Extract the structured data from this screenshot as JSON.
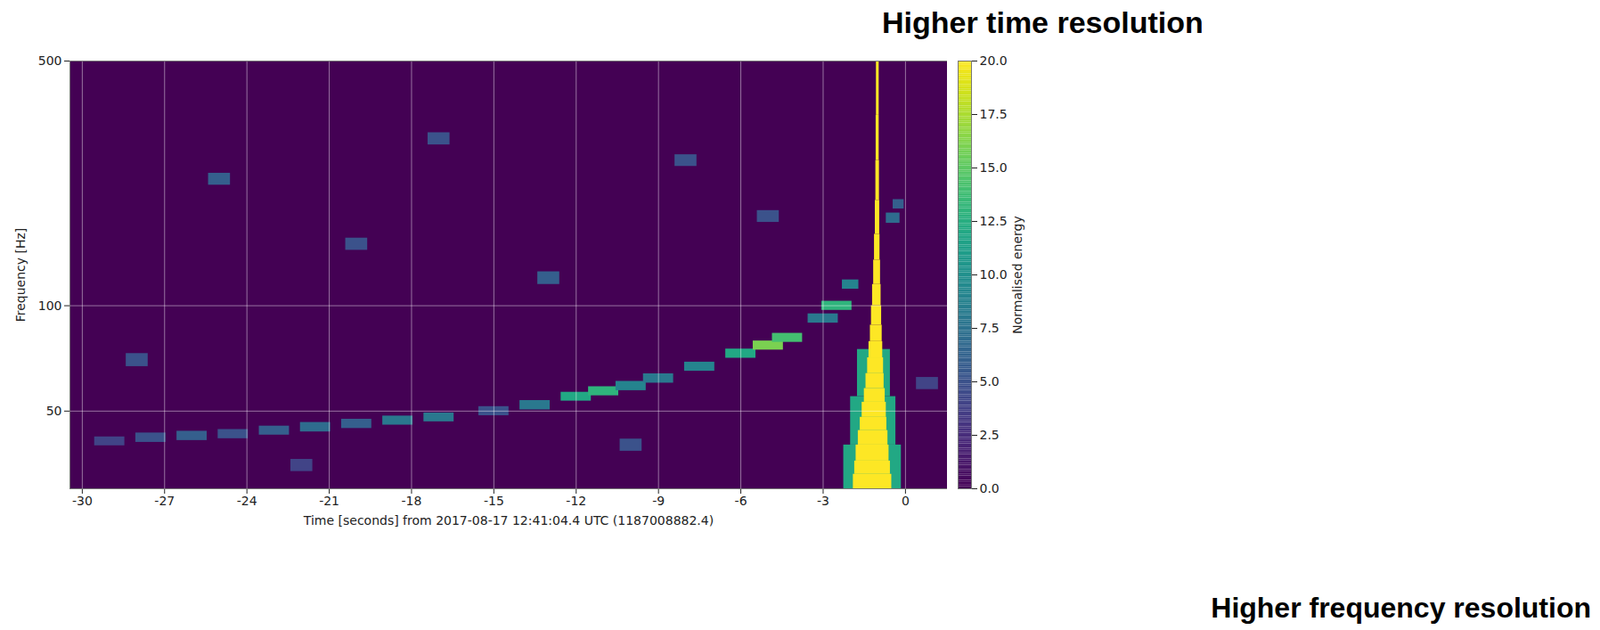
{
  "chart_data": {
    "type": "heatmap",
    "x_label": "Time [seconds] from 2017-08-17 12:41:04.4 UTC (1187008882.4)",
    "y_label": "Frequency [Hz]",
    "xlim": [
      -30.45,
      1.53
    ],
    "ylim": [
      30,
      500
    ],
    "xticks": [
      -30,
      -27,
      -24,
      -21,
      -18,
      -15,
      -12,
      -9,
      -6,
      -3,
      0
    ],
    "yticks": [
      50,
      100,
      500
    ],
    "log": "y",
    "grid": true,
    "color": "viridis",
    "colorbar": {
      "label": "Normalised energy",
      "lim": [
        0,
        20
      ],
      "ticks": [
        {
          "value": 0,
          "label": "0.0"
        },
        {
          "value": 2.5,
          "label": "2.5"
        },
        {
          "value": 5,
          "label": "5.0"
        },
        {
          "value": 7.5,
          "label": "7.5"
        },
        {
          "value": 10,
          "label": "10.0"
        },
        {
          "value": 12.5,
          "label": "12.5"
        },
        {
          "value": 15,
          "label": "15.0"
        },
        {
          "value": 17.5,
          "label": "17.5"
        },
        {
          "value": 20,
          "label": "20.0"
        }
      ]
    },
    "annotations": [
      "Higher time resolution",
      "Higher frequency resolution"
    ],
    "cells": [
      {
        "t": [
          -25.4,
          -24.6
        ],
        "f": [
          221,
          239
        ],
        "energy": 6
      },
      {
        "t": [
          -20.4,
          -19.6
        ],
        "f": [
          144,
          156
        ],
        "energy": 5
      },
      {
        "t": [
          -17.4,
          -16.6
        ],
        "f": [
          288,
          312
        ],
        "energy": 5
      },
      {
        "t": [
          -13.4,
          -12.6
        ],
        "f": [
          115,
          125
        ],
        "energy": 6
      },
      {
        "t": [
          -8.4,
          -7.6
        ],
        "f": [
          250,
          270
        ],
        "energy": 5
      },
      {
        "t": [
          -28.4,
          -27.6
        ],
        "f": [
          67,
          73
        ],
        "energy": 5
      },
      {
        "t": [
          -22.4,
          -21.6
        ],
        "f": [
          33.6,
          36.4
        ],
        "energy": 4
      },
      {
        "t": [
          -10.4,
          -9.6
        ],
        "f": [
          38.4,
          41.6
        ],
        "energy": 5
      },
      {
        "t": [
          -5.4,
          -4.6
        ],
        "f": [
          173,
          187
        ],
        "energy": 5
      },
      {
        "t": [
          0.4,
          1.2
        ],
        "f": [
          57.6,
          62.4
        ],
        "energy": 4
      },
      {
        "t": [
          -29.55,
          -28.45
        ],
        "f": [
          39.8,
          42.2
        ],
        "energy": 4
      },
      {
        "t": [
          -28.05,
          -26.95
        ],
        "f": [
          40.7,
          43.3
        ],
        "energy": 5
      },
      {
        "t": [
          -26.55,
          -25.45
        ],
        "f": [
          41.2,
          43.8
        ],
        "energy": 6
      },
      {
        "t": [
          -25.05,
          -23.95
        ],
        "f": [
          41.7,
          44.3
        ],
        "energy": 5
      },
      {
        "t": [
          -23.55,
          -22.45
        ],
        "f": [
          42.7,
          45.3
        ],
        "energy": 6
      },
      {
        "t": [
          -22.05,
          -20.95
        ],
        "f": [
          43.6,
          46.4
        ],
        "energy": 7
      },
      {
        "t": [
          -20.55,
          -19.45
        ],
        "f": [
          44.6,
          47.4
        ],
        "energy": 6
      },
      {
        "t": [
          -19.05,
          -17.95
        ],
        "f": [
          45.6,
          48.4
        ],
        "energy": 8
      },
      {
        "t": [
          -17.55,
          -16.45
        ],
        "f": [
          46.6,
          49.4
        ],
        "energy": 8
      },
      {
        "t": [
          -15.55,
          -14.45
        ],
        "f": [
          48.5,
          51.5
        ],
        "energy": 5
      },
      {
        "t": [
          -14.05,
          -12.95
        ],
        "f": [
          50.4,
          53.6
        ],
        "energy": 8
      },
      {
        "t": [
          -12.55,
          -11.45
        ],
        "f": [
          53.4,
          56.6
        ],
        "energy": 12
      },
      {
        "t": [
          -11.55,
          -10.45
        ],
        "f": [
          55.3,
          58.7
        ],
        "energy": 13
      },
      {
        "t": [
          -10.55,
          -9.45
        ],
        "f": [
          57.2,
          60.8
        ],
        "energy": 9
      },
      {
        "t": [
          -9.55,
          -8.45
        ],
        "f": [
          60.1,
          63.9
        ],
        "energy": 8
      },
      {
        "t": [
          -8.05,
          -6.95
        ],
        "f": [
          65,
          69
        ],
        "energy": 9
      },
      {
        "t": [
          -6.55,
          -5.45
        ],
        "f": [
          70.8,
          75.2
        ],
        "energy": 12
      },
      {
        "t": [
          -5.55,
          -4.45
        ],
        "f": [
          74.7,
          79.3
        ],
        "energy": 16
      },
      {
        "t": [
          -4.85,
          -3.75
        ],
        "f": [
          78.6,
          83.4
        ],
        "energy": 14
      },
      {
        "t": [
          -3.55,
          -2.45
        ],
        "f": [
          89.2,
          94.8
        ],
        "energy": 8
      },
      {
        "t": [
          -3.05,
          -1.95
        ],
        "f": [
          97,
          103
        ],
        "energy": 13
      },
      {
        "t": [
          -2.3,
          -1.7
        ],
        "f": [
          111.5,
          118.5
        ],
        "energy": 9
      },
      {
        "t": [
          -0.7,
          -0.2
        ],
        "f": [
          172,
          184
        ],
        "energy": 7
      },
      {
        "t": [
          -0.45,
          -0.05
        ],
        "f": [
          189,
          201
        ],
        "energy": 6
      },
      {
        "t": [
          -2.25,
          -0.15
        ],
        "f": [
          30,
          40
        ],
        "energy": 12
      },
      {
        "t": [
          -2.0,
          -0.35
        ],
        "f": [
          40,
          55
        ],
        "energy": 12
      },
      {
        "t": [
          -1.75,
          -0.55
        ],
        "f": [
          55,
          75
        ],
        "energy": 12
      },
      {
        "t": [
          -1.9,
          -0.5
        ],
        "f": [
          30,
          33
        ],
        "energy": 20
      },
      {
        "t": [
          -1.85,
          -0.55
        ],
        "f": [
          33,
          36
        ],
        "energy": 20
      },
      {
        "t": [
          -1.8,
          -0.6
        ],
        "f": [
          36,
          40
        ],
        "energy": 20
      },
      {
        "t": [
          -1.72,
          -0.64
        ],
        "f": [
          40,
          44
        ],
        "energy": 20
      },
      {
        "t": [
          -1.65,
          -0.68
        ],
        "f": [
          44,
          48
        ],
        "energy": 20
      },
      {
        "t": [
          -1.58,
          -0.7
        ],
        "f": [
          48,
          53
        ],
        "energy": 20
      },
      {
        "t": [
          -1.5,
          -0.74
        ],
        "f": [
          53,
          58
        ],
        "energy": 20
      },
      {
        "t": [
          -1.44,
          -0.78
        ],
        "f": [
          58,
          64
        ],
        "energy": 20
      },
      {
        "t": [
          -1.38,
          -0.8
        ],
        "f": [
          64,
          71
        ],
        "energy": 20
      },
      {
        "t": [
          -1.33,
          -0.83
        ],
        "f": [
          71,
          79
        ],
        "energy": 20
      },
      {
        "t": [
          -1.28,
          -0.85
        ],
        "f": [
          79,
          88
        ],
        "energy": 20
      },
      {
        "t": [
          -1.24,
          -0.87
        ],
        "f": [
          88,
          100
        ],
        "energy": 20
      },
      {
        "t": [
          -1.2,
          -0.89
        ],
        "f": [
          100,
          115
        ],
        "energy": 20
      },
      {
        "t": [
          -1.16,
          -0.91
        ],
        "f": [
          115,
          135
        ],
        "energy": 20
      },
      {
        "t": [
          -1.13,
          -0.93
        ],
        "f": [
          135,
          160
        ],
        "energy": 20
      },
      {
        "t": [
          -1.1,
          -0.94
        ],
        "f": [
          160,
          200
        ],
        "energy": 20
      },
      {
        "t": [
          -1.08,
          -0.95
        ],
        "f": [
          200,
          260
        ],
        "energy": 20
      },
      {
        "t": [
          -1.07,
          -0.96
        ],
        "f": [
          260,
          350
        ],
        "energy": 20
      },
      {
        "t": [
          -1.06,
          -0.96
        ],
        "f": [
          350,
          500
        ],
        "energy": 20
      }
    ]
  }
}
